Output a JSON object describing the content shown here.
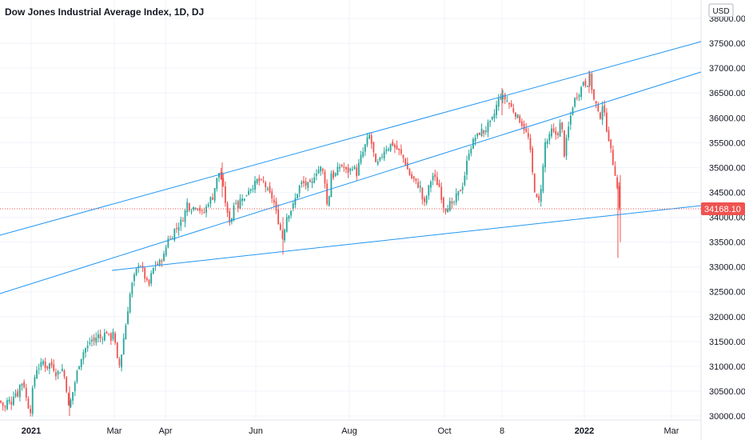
{
  "header": {
    "title": "Dow Jones Industrial Average Index, 1D, DJ"
  },
  "axis": {
    "currency": "USD",
    "current_price_label": "34168.10"
  },
  "colors": {
    "up": "#26a69a",
    "down": "#ef5350",
    "trendline": "#2196f3",
    "price_line": "#ef5350",
    "grid": "#f0f3fa"
  },
  "chart_data": {
    "type": "candlestick",
    "title": "Dow Jones Industrial Average Index, 1D, DJ",
    "currency": "USD",
    "ylim": [
      29950,
      38250
    ],
    "y_ticks": [
      "38000.00",
      "37500.00",
      "37000.00",
      "36500.00",
      "36000.00",
      "35500.00",
      "35000.00",
      "34500.00",
      "34000.00",
      "33500.00",
      "33000.00",
      "32500.00",
      "32000.00",
      "31500.00",
      "31000.00",
      "30500.00",
      "30000.00"
    ],
    "x_ticks": [
      {
        "label": "2021",
        "bold": true
      },
      {
        "label": "Mar",
        "bold": false
      },
      {
        "label": "Apr",
        "bold": false
      },
      {
        "label": "Jun",
        "bold": false
      },
      {
        "label": "Aug",
        "bold": false
      },
      {
        "label": "Oct",
        "bold": false
      },
      {
        "label": "8",
        "bold": false
      },
      {
        "label": "2022",
        "bold": true
      },
      {
        "label": "Mar",
        "bold": false
      }
    ],
    "last_price": 34168.1,
    "grid": true,
    "close_path": [
      [
        0,
        30300
      ],
      [
        6,
        30150
      ],
      [
        10,
        30350
      ],
      [
        14,
        30250
      ],
      [
        18,
        30500
      ],
      [
        22,
        30420
      ],
      [
        26,
        30700
      ],
      [
        30,
        30620
      ],
      [
        34,
        30250
      ],
      [
        38,
        30100
      ],
      [
        42,
        30700
      ],
      [
        46,
        30950
      ],
      [
        50,
        31000
      ],
      [
        54,
        31100
      ],
      [
        58,
        30950
      ],
      [
        62,
        31050
      ],
      [
        66,
        31000
      ],
      [
        70,
        30850
      ],
      [
        74,
        30900
      ],
      [
        78,
        30950
      ],
      [
        82,
        30700
      ],
      [
        86,
        30150
      ],
      [
        90,
        30400
      ],
      [
        94,
        30700
      ],
      [
        98,
        31000
      ],
      [
        102,
        31200
      ],
      [
        106,
        31350
      ],
      [
        110,
        31400
      ],
      [
        114,
        31550
      ],
      [
        118,
        31500
      ],
      [
        122,
        31650
      ],
      [
        126,
        31550
      ],
      [
        130,
        31650
      ],
      [
        134,
        31700
      ],
      [
        138,
        31500
      ],
      [
        142,
        31750
      ],
      [
        146,
        31150
      ],
      [
        150,
        31000
      ],
      [
        154,
        31500
      ],
      [
        158,
        31900
      ],
      [
        162,
        32400
      ],
      [
        166,
        32700
      ],
      [
        170,
        32900
      ],
      [
        174,
        33100
      ],
      [
        178,
        32950
      ],
      [
        182,
        32750
      ],
      [
        186,
        32600
      ],
      [
        190,
        32900
      ],
      [
        194,
        33050
      ],
      [
        198,
        33050
      ],
      [
        202,
        33150
      ],
      [
        206,
        33250
      ],
      [
        210,
        33600
      ],
      [
        214,
        33550
      ],
      [
        218,
        33750
      ],
      [
        222,
        33800
      ],
      [
        226,
        33900
      ],
      [
        230,
        34000
      ],
      [
        234,
        34300
      ],
      [
        238,
        34150
      ],
      [
        242,
        34200
      ],
      [
        246,
        34250
      ],
      [
        250,
        34150
      ],
      [
        254,
        34050
      ],
      [
        258,
        34200
      ],
      [
        262,
        34350
      ],
      [
        266,
        34400
      ],
      [
        270,
        34700
      ],
      [
        274,
        34900
      ],
      [
        278,
        34700
      ],
      [
        282,
        34300
      ],
      [
        286,
        33900
      ],
      [
        290,
        34000
      ],
      [
        294,
        34400
      ],
      [
        298,
        34200
      ],
      [
        302,
        34450
      ],
      [
        306,
        34350
      ],
      [
        310,
        34550
      ],
      [
        314,
        34600
      ],
      [
        318,
        34650
      ],
      [
        322,
        34750
      ],
      [
        326,
        34700
      ],
      [
        330,
        34700
      ],
      [
        334,
        34550
      ],
      [
        338,
        34450
      ],
      [
        342,
        34350
      ],
      [
        346,
        34050
      ],
      [
        350,
        33800
      ],
      [
        354,
        33550
      ],
      [
        358,
        34000
      ],
      [
        362,
        34100
      ],
      [
        366,
        34200
      ],
      [
        370,
        34400
      ],
      [
        374,
        34600
      ],
      [
        378,
        34700
      ],
      [
        382,
        34650
      ],
      [
        386,
        34650
      ],
      [
        390,
        34650
      ],
      [
        394,
        34900
      ],
      [
        398,
        34950
      ],
      [
        402,
        35000
      ],
      [
        406,
        34800
      ],
      [
        410,
        34100
      ],
      [
        414,
        34900
      ],
      [
        418,
        34800
      ],
      [
        422,
        34950
      ],
      [
        426,
        35050
      ],
      [
        430,
        35000
      ],
      [
        434,
        34900
      ],
      [
        438,
        34950
      ],
      [
        442,
        35050
      ],
      [
        446,
        34850
      ],
      [
        450,
        35150
      ],
      [
        454,
        35300
      ],
      [
        458,
        35500
      ],
      [
        462,
        35650
      ],
      [
        466,
        35400
      ],
      [
        470,
        35050
      ],
      [
        474,
        35100
      ],
      [
        478,
        35250
      ],
      [
        482,
        35400
      ],
      [
        486,
        35400
      ],
      [
        490,
        35500
      ],
      [
        494,
        35400
      ],
      [
        498,
        35350
      ],
      [
        502,
        35250
      ],
      [
        506,
        35150
      ],
      [
        510,
        34950
      ],
      [
        514,
        34800
      ],
      [
        518,
        34750
      ],
      [
        522,
        34650
      ],
      [
        526,
        34600
      ],
      [
        530,
        34200
      ],
      [
        534,
        34450
      ],
      [
        538,
        34700
      ],
      [
        542,
        34850
      ],
      [
        546,
        34700
      ],
      [
        550,
        34600
      ],
      [
        554,
        34250
      ],
      [
        558,
        34150
      ],
      [
        562,
        34300
      ],
      [
        566,
        34200
      ],
      [
        570,
        34400
      ],
      [
        574,
        34500
      ],
      [
        578,
        34600
      ],
      [
        582,
        34900
      ],
      [
        586,
        35300
      ],
      [
        590,
        35450
      ],
      [
        594,
        35600
      ],
      [
        598,
        35650
      ],
      [
        602,
        35750
      ],
      [
        606,
        35700
      ],
      [
        610,
        35850
      ],
      [
        614,
        35900
      ],
      [
        618,
        36050
      ],
      [
        622,
        36300
      ],
      [
        626,
        36450
      ],
      [
        630,
        36400
      ],
      [
        634,
        36350
      ],
      [
        638,
        36250
      ],
      [
        642,
        36150
      ],
      [
        646,
        36050
      ],
      [
        650,
        35950
      ],
      [
        654,
        35850
      ],
      [
        658,
        35700
      ],
      [
        662,
        35550
      ],
      [
        666,
        34900
      ],
      [
        670,
        34400
      ],
      [
        674,
        34300
      ],
      [
        678,
        34750
      ],
      [
        682,
        35500
      ],
      [
        686,
        35550
      ],
      [
        690,
        35750
      ],
      [
        694,
        35650
      ],
      [
        698,
        35700
      ],
      [
        702,
        35950
      ],
      [
        706,
        35250
      ],
      [
        710,
        35700
      ],
      [
        714,
        36050
      ],
      [
        718,
        36350
      ],
      [
        722,
        36450
      ],
      [
        726,
        36550
      ],
      [
        730,
        36750
      ],
      [
        734,
        36650
      ],
      [
        738,
        36850
      ],
      [
        742,
        36400
      ],
      [
        746,
        36250
      ],
      [
        750,
        35950
      ],
      [
        754,
        36300
      ],
      [
        758,
        35850
      ],
      [
        762,
        35550
      ],
      [
        766,
        35150
      ],
      [
        770,
        34850
      ],
      [
        774,
        34350
      ],
      [
        776,
        34050
      ],
      [
        778,
        34168.1
      ]
    ]
  }
}
